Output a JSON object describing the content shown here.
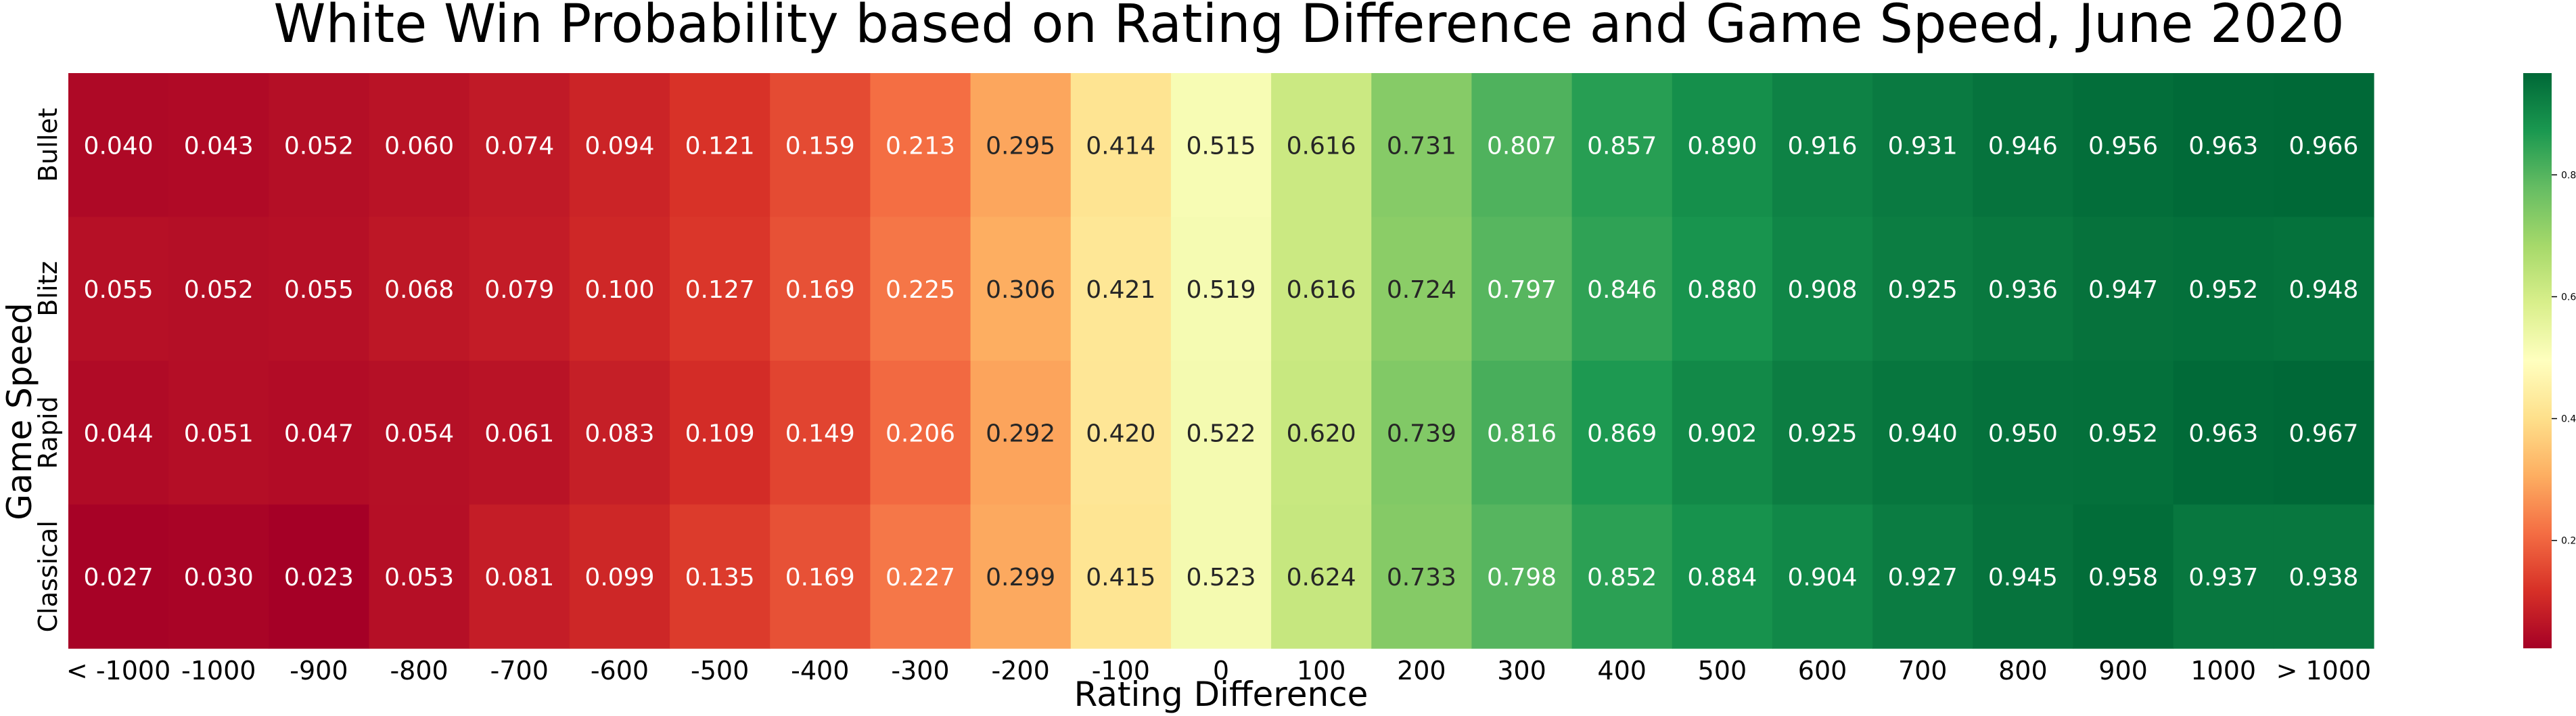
{
  "chart_data": {
    "type": "heatmap",
    "title": "White Win Probability based on Rating Difference and Game Speed, June 2020",
    "xlabel": "Rating Difference",
    "ylabel": "Game Speed",
    "x": [
      "< -1000",
      "-1000",
      "-900",
      "-800",
      "-700",
      "-600",
      "-500",
      "-400",
      "-300",
      "-200",
      "-100",
      "0",
      "100",
      "200",
      "300",
      "400",
      "500",
      "600",
      "700",
      "800",
      "900",
      "1000",
      "> 1000"
    ],
    "y": [
      "Bullet",
      "Blitz",
      "Rapid",
      "Classical"
    ],
    "values": [
      [
        0.04,
        0.043,
        0.052,
        0.06,
        0.074,
        0.094,
        0.121,
        0.159,
        0.213,
        0.295,
        0.414,
        0.515,
        0.616,
        0.731,
        0.807,
        0.857,
        0.89,
        0.916,
        0.931,
        0.946,
        0.956,
        0.963,
        0.966
      ],
      [
        0.055,
        0.052,
        0.055,
        0.068,
        0.079,
        0.1,
        0.127,
        0.169,
        0.225,
        0.306,
        0.421,
        0.519,
        0.616,
        0.724,
        0.797,
        0.846,
        0.88,
        0.908,
        0.925,
        0.936,
        0.947,
        0.952,
        0.948
      ],
      [
        0.044,
        0.051,
        0.047,
        0.054,
        0.061,
        0.083,
        0.109,
        0.149,
        0.206,
        0.292,
        0.42,
        0.522,
        0.62,
        0.739,
        0.816,
        0.869,
        0.902,
        0.925,
        0.94,
        0.95,
        0.952,
        0.963,
        0.967
      ],
      [
        0.027,
        0.03,
        0.023,
        0.053,
        0.081,
        0.099,
        0.135,
        0.169,
        0.227,
        0.299,
        0.415,
        0.523,
        0.624,
        0.733,
        0.798,
        0.852,
        0.884,
        0.904,
        0.927,
        0.945,
        0.958,
        0.937,
        0.938
      ]
    ],
    "colorscale": "RdYlGn",
    "colorbar": {
      "range": [
        0.023,
        0.967
      ],
      "ticks": [
        0.2,
        0.4,
        0.6,
        0.8
      ]
    },
    "annotation_format": "3 decimals"
  }
}
